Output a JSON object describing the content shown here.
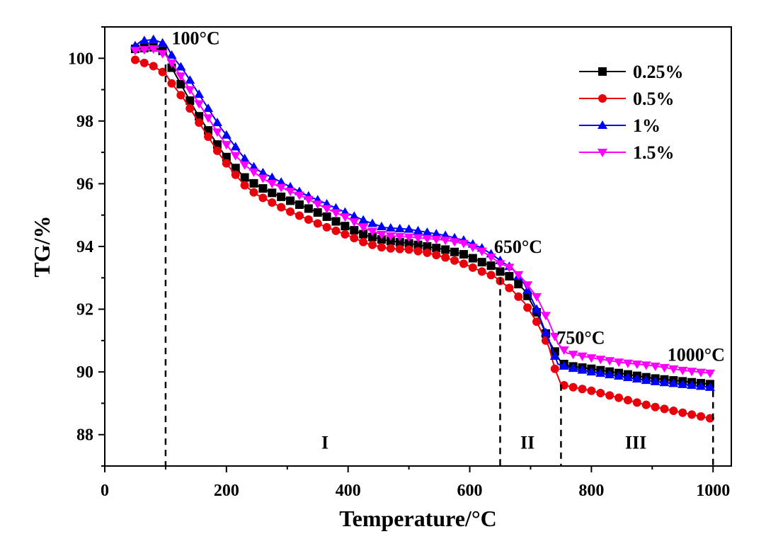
{
  "chart_data": {
    "type": "line",
    "xlabel": "Temperature/°C",
    "ylabel": "TG/%",
    "xlim": [
      0,
      1030
    ],
    "ylim": [
      87,
      101
    ],
    "xticks": [
      0,
      200,
      400,
      600,
      800,
      1000
    ],
    "yticks": [
      88,
      90,
      92,
      94,
      96,
      98,
      100
    ],
    "legend_position": "top-right",
    "series": [
      {
        "name": "0.25%",
        "color": "#000000",
        "marker": "square",
        "x": [
          50,
          80,
          100,
          110,
          130,
          150,
          170,
          190,
          210,
          230,
          250,
          270,
          300,
          330,
          360,
          400,
          430,
          460,
          500,
          530,
          560,
          590,
          620,
          640,
          650,
          670,
          690,
          710,
          730,
          750,
          760,
          800,
          850,
          900,
          950,
          1000
        ],
        "y": [
          100.3,
          100.35,
          100.2,
          99.7,
          99.0,
          98.3,
          97.7,
          97.1,
          96.6,
          96.2,
          95.95,
          95.75,
          95.5,
          95.25,
          95.0,
          94.6,
          94.35,
          94.2,
          94.1,
          94.0,
          93.9,
          93.75,
          93.5,
          93.35,
          93.2,
          93.0,
          92.6,
          91.9,
          91.0,
          90.3,
          90.2,
          90.1,
          89.95,
          89.8,
          89.7,
          89.6
        ]
      },
      {
        "name": "0.5%",
        "color": "#e8000b",
        "marker": "circle",
        "x": [
          50,
          80,
          100,
          110,
          130,
          150,
          170,
          190,
          210,
          230,
          250,
          270,
          300,
          330,
          360,
          400,
          430,
          460,
          500,
          530,
          560,
          590,
          620,
          640,
          650,
          670,
          690,
          710,
          730,
          740,
          750,
          760,
          800,
          850,
          900,
          950,
          1000
        ],
        "y": [
          99.95,
          99.75,
          99.5,
          99.2,
          98.7,
          98.1,
          97.5,
          96.9,
          96.4,
          95.95,
          95.65,
          95.45,
          95.15,
          94.9,
          94.65,
          94.35,
          94.1,
          93.95,
          93.9,
          93.8,
          93.65,
          93.45,
          93.2,
          93.05,
          92.9,
          92.6,
          92.2,
          91.6,
          90.8,
          90.1,
          89.6,
          89.55,
          89.4,
          89.15,
          88.9,
          88.7,
          88.5
        ]
      },
      {
        "name": "1%",
        "color": "#0000ff",
        "marker": "triangle-up",
        "x": [
          50,
          60,
          80,
          100,
          110,
          130,
          150,
          170,
          190,
          210,
          230,
          250,
          270,
          300,
          330,
          360,
          400,
          430,
          460,
          500,
          530,
          560,
          590,
          620,
          640,
          650,
          670,
          690,
          710,
          730,
          745,
          760,
          800,
          850,
          900,
          950,
          1000
        ],
        "y": [
          100.4,
          100.55,
          100.6,
          100.45,
          100.1,
          99.6,
          99.0,
          98.4,
          97.8,
          97.3,
          96.8,
          96.45,
          96.25,
          95.95,
          95.65,
          95.4,
          95.05,
          94.8,
          94.6,
          94.55,
          94.45,
          94.35,
          94.2,
          93.95,
          93.7,
          93.55,
          93.3,
          92.8,
          92.0,
          91.0,
          90.25,
          90.15,
          90.0,
          89.85,
          89.7,
          89.6,
          89.5
        ]
      },
      {
        "name": "1.5%",
        "color": "#ff00ff",
        "marker": "triangle-down",
        "x": [
          50,
          80,
          100,
          110,
          130,
          150,
          170,
          190,
          210,
          230,
          250,
          270,
          300,
          330,
          360,
          400,
          430,
          460,
          500,
          530,
          560,
          590,
          620,
          640,
          650,
          670,
          690,
          710,
          730,
          745,
          760,
          800,
          850,
          900,
          950,
          1000
        ],
        "y": [
          100.25,
          100.3,
          100.1,
          99.85,
          99.3,
          98.7,
          98.1,
          97.5,
          97.0,
          96.6,
          96.3,
          96.05,
          95.8,
          95.55,
          95.25,
          94.9,
          94.55,
          94.35,
          94.3,
          94.25,
          94.2,
          94.1,
          93.85,
          93.6,
          93.45,
          93.3,
          92.9,
          92.4,
          91.6,
          90.9,
          90.6,
          90.45,
          90.3,
          90.2,
          90.05,
          89.95
        ]
      }
    ],
    "reference_lines": [
      {
        "x": 100,
        "y_top": 99.8
      },
      {
        "x": 650,
        "y_top": 93.0
      },
      {
        "x": 750,
        "y_top": 89.6
      },
      {
        "x": 1000,
        "y_top": 89.4
      }
    ],
    "annotations": [
      {
        "text": "100°C",
        "x": 110,
        "y": 100.45
      },
      {
        "text": "650°C",
        "x": 640,
        "y": 93.8
      },
      {
        "text": "750°C",
        "x": 743,
        "y": 90.9
      },
      {
        "text": "1000°C",
        "x": 925,
        "y": 90.35
      }
    ],
    "regions": [
      {
        "text": "I",
        "x": 362,
        "y": 87.55
      },
      {
        "text": "II",
        "x": 695,
        "y": 87.55
      },
      {
        "text": "III",
        "x": 873,
        "y": 87.55
      }
    ]
  }
}
